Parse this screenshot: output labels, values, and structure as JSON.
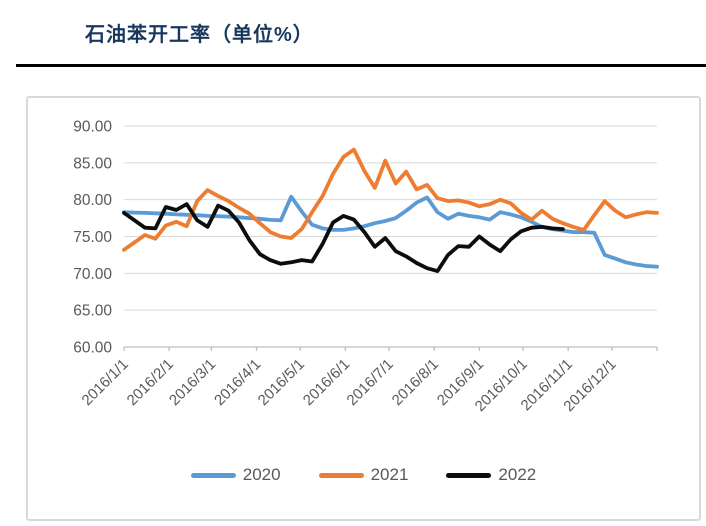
{
  "page": {
    "title": "石油苯开工率（单位%）"
  },
  "chart_data": {
    "type": "line",
    "title": "石油苯开工率（单位%）",
    "unit": "%",
    "sampling": "weekly",
    "grid": true,
    "legend_position": "bottom",
    "x_axis": {
      "tick_labels": [
        "2016/1/1",
        "2016/2/1",
        "2016/3/1",
        "2016/4/1",
        "2016/5/1",
        "2016/6/1",
        "2016/7/1",
        "2016/8/1",
        "2016/9/1",
        "2016/10/1",
        "2016/11/1",
        "2016/12/1"
      ],
      "tick_days": [
        0,
        31,
        60,
        91,
        121,
        152,
        182,
        213,
        244,
        274,
        305,
        335
      ],
      "range_days": [
        0,
        366
      ]
    },
    "y_axis": {
      "min": 60,
      "max": 90,
      "step": 5,
      "tick_labels": [
        "90.00",
        "85.00",
        "80.00",
        "75.00",
        "70.00",
        "65.00",
        "60.00"
      ]
    },
    "series": [
      {
        "name": "2020",
        "color": "#5b9bd5",
        "values": [
          78.3,
          78.25,
          78.2,
          78.15,
          78.1,
          78.0,
          77.95,
          77.9,
          77.8,
          77.75,
          77.7,
          77.6,
          77.5,
          77.4,
          77.25,
          77.2,
          80.4,
          78.4,
          76.6,
          76.1,
          75.9,
          75.9,
          76.1,
          76.4,
          76.8,
          77.1,
          77.5,
          78.5,
          79.6,
          80.3,
          78.3,
          77.4,
          78.1,
          77.8,
          77.6,
          77.3,
          78.3,
          78.0,
          77.6,
          77.0,
          76.3,
          76.0,
          75.8,
          75.6,
          75.6,
          75.5,
          72.5,
          72.0,
          71.5,
          71.2,
          71.0,
          70.9
        ]
      },
      {
        "name": "2021",
        "color": "#ed7d31",
        "values": [
          73.2,
          74.2,
          75.2,
          74.7,
          76.5,
          77.0,
          76.4,
          79.8,
          81.3,
          80.5,
          79.8,
          78.9,
          78.1,
          76.8,
          75.6,
          75.0,
          74.8,
          76.0,
          78.3,
          80.5,
          83.5,
          85.8,
          86.8,
          83.9,
          81.6,
          85.3,
          82.2,
          83.8,
          81.4,
          82.0,
          80.2,
          79.8,
          79.9,
          79.6,
          79.1,
          79.4,
          80.0,
          79.5,
          78.2,
          77.3,
          78.5,
          77.4,
          76.8,
          76.3,
          75.9,
          77.9,
          79.8,
          78.5,
          77.6,
          78.0,
          78.3,
          78.2
        ]
      },
      {
        "name": "2022",
        "color": "#0d0d0d",
        "values": [
          78.2,
          77.2,
          76.2,
          76.1,
          79.0,
          78.6,
          79.4,
          77.2,
          76.3,
          79.2,
          78.5,
          76.9,
          74.5,
          72.6,
          71.8,
          71.3,
          71.5,
          71.8,
          71.6,
          74.0,
          76.9,
          77.8,
          77.3,
          75.6,
          73.6,
          74.8,
          73.0,
          72.3,
          71.4,
          70.7,
          70.3,
          72.5,
          73.7,
          73.6,
          75.0,
          73.9,
          73.0,
          74.6,
          75.7,
          76.2,
          76.3,
          76.1,
          76.0
        ]
      }
    ]
  }
}
